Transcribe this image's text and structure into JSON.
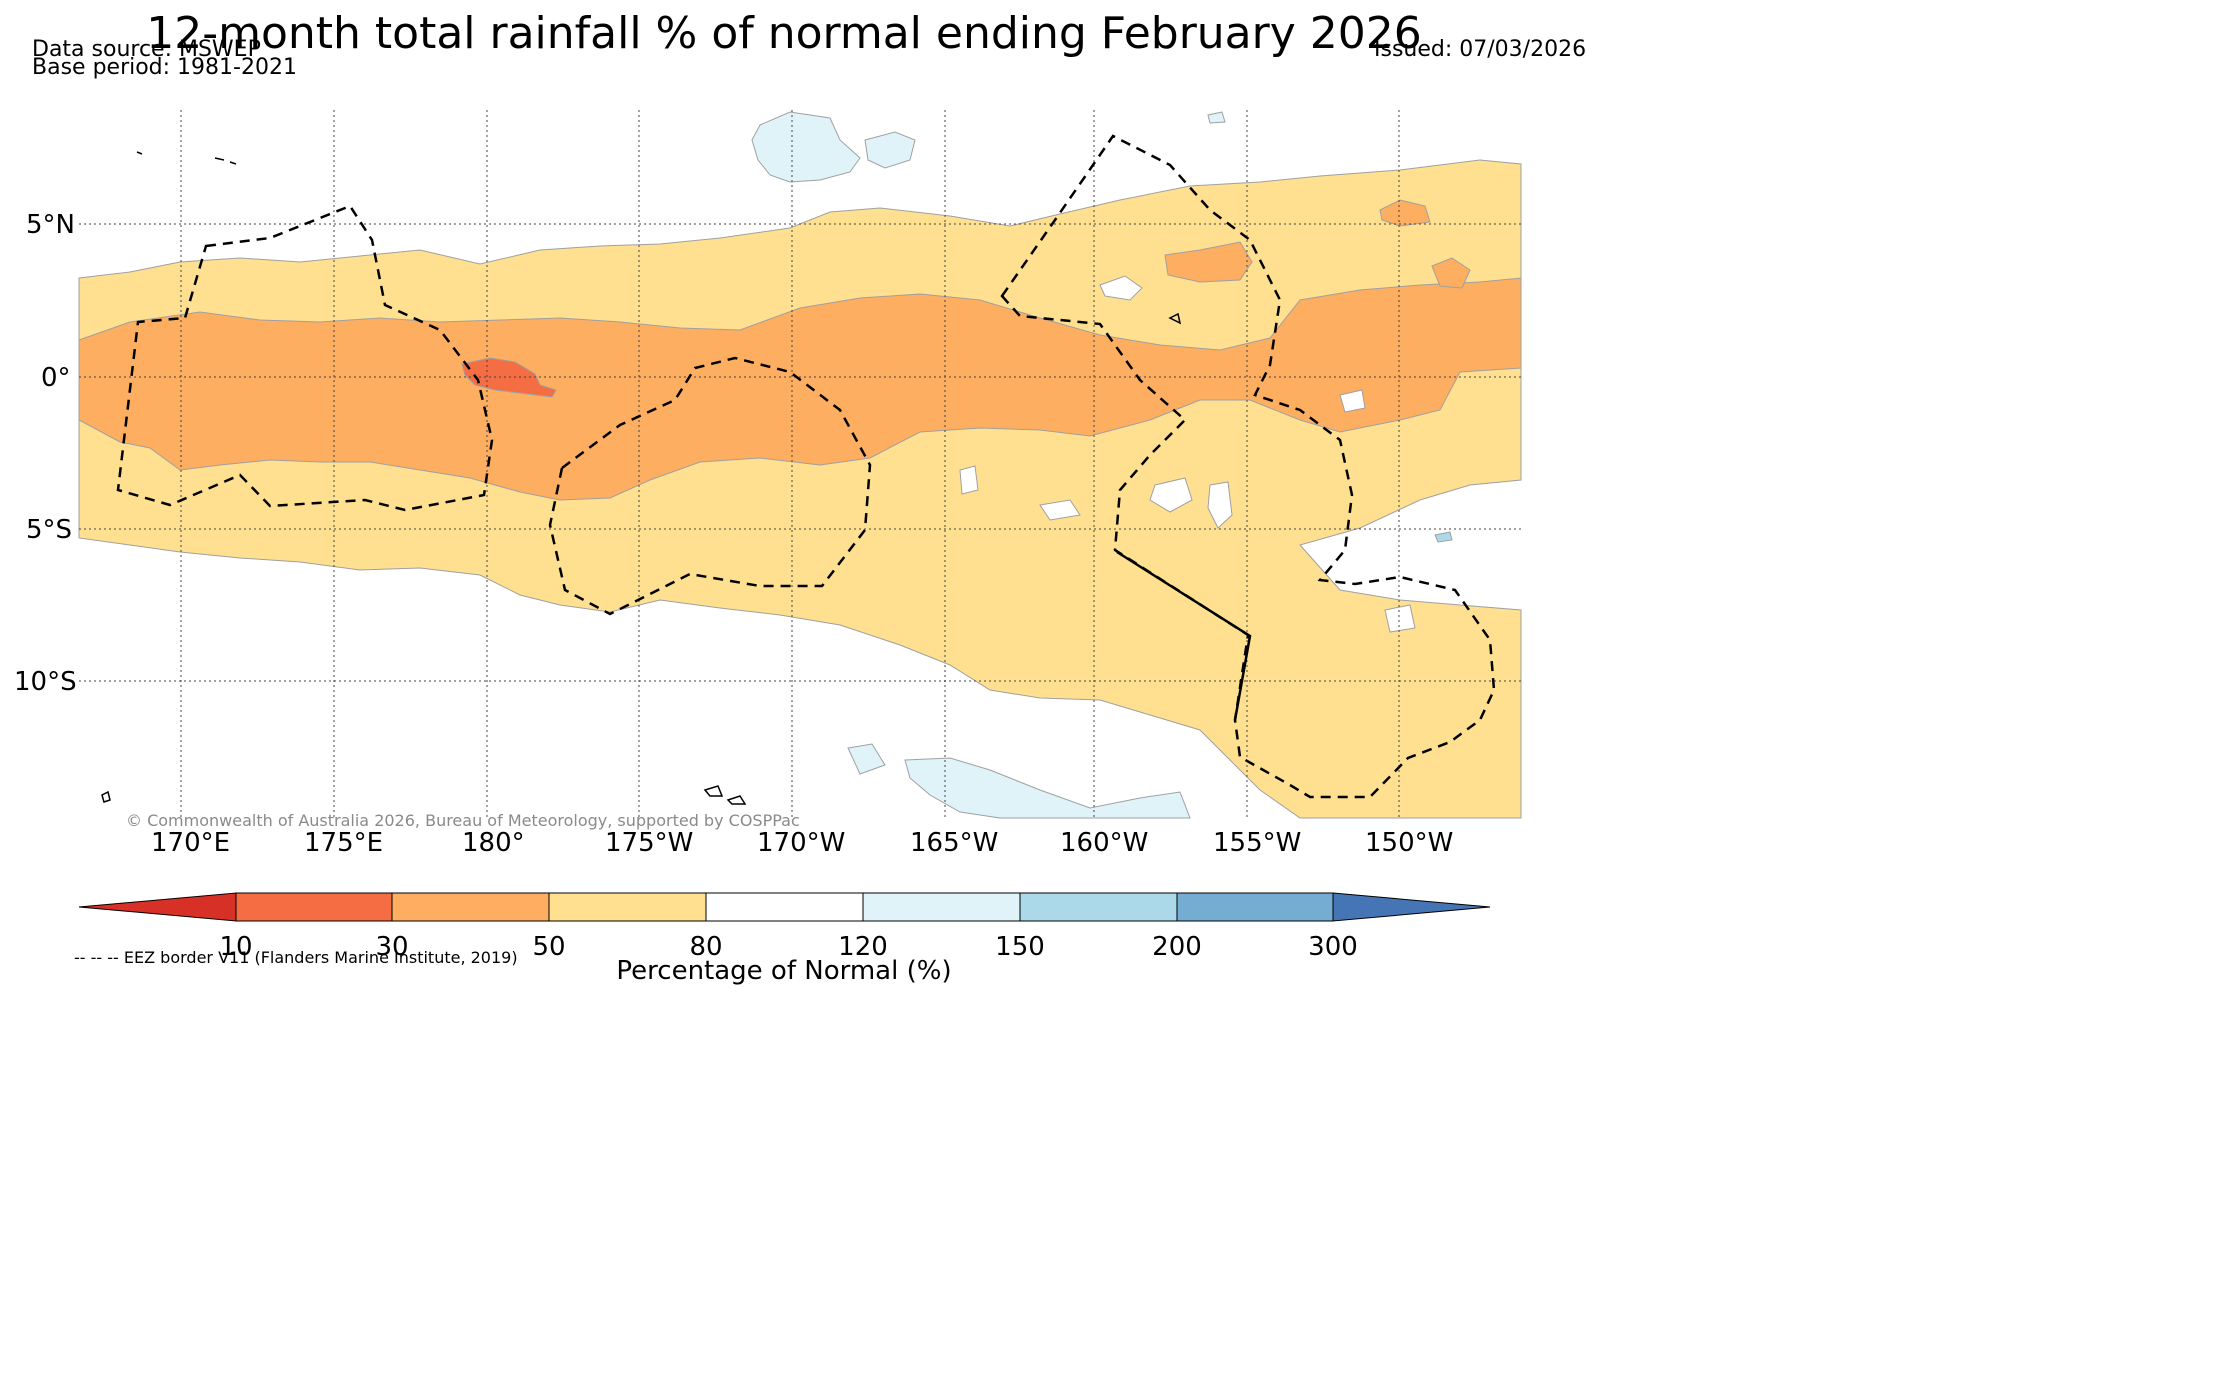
{
  "title": "12-month total rainfall % of normal ending February 2026",
  "source": {
    "data_source": "Data source: MSWEP",
    "base_period": "Base period: 1981-2021"
  },
  "issued": "Issued: 07/03/2026",
  "copyright": "© Commonwealth of Australia 2026, Bureau of Meteorology, supported by COSPPac",
  "eez_note": "-- -- -- EEZ border V11 (Flanders Marine Institute, 2019)",
  "lon_ticks": [
    "170°E",
    "175°E",
    "180°",
    "175°W",
    "170°W",
    "165°W",
    "160°W",
    "155°W",
    "150°W"
  ],
  "lat_ticks": [
    "5°N",
    "0°",
    "5°S",
    "10°S"
  ],
  "colorbar": {
    "title": "Percentage of Normal (%)",
    "labels": [
      "10",
      "30",
      "50",
      "80",
      "120",
      "150",
      "200",
      "300"
    ],
    "colors": [
      "#d73027",
      "#f46d43",
      "#fdae61",
      "#fee090",
      "#ffffff",
      "#e0f3f8",
      "#abd9e9",
      "#74add1",
      "#4575b4"
    ]
  },
  "map_colors": {
    "very_dry": "#f46d43",
    "dry": "#fdae61",
    "below": "#fee090",
    "wet": "#e0f3f8",
    "wetter": "#abd9e9"
  }
}
